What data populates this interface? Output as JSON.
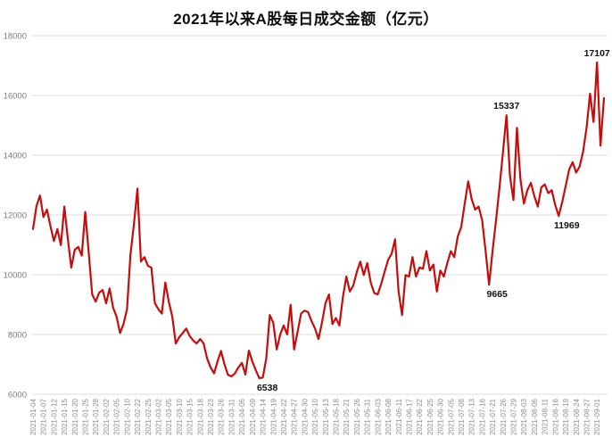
{
  "page": {
    "background": "#ffffff"
  },
  "chart_data": {
    "type": "line",
    "title": "2021年以来A股每日成交金额（亿元）",
    "unit": "亿元",
    "legend": "none",
    "grid": "horizontal",
    "line_color": "#c40d0d",
    "grid_color": "#dcdcdc",
    "ylim": [
      6000,
      18000
    ],
    "yticks": [
      6000,
      8000,
      10000,
      12000,
      14000,
      16000,
      18000
    ],
    "x_tick_interval": 3,
    "x": [
      "2021-01-04",
      "2021-01-05",
      "2021-01-06",
      "2021-01-07",
      "2021-01-08",
      "2021-01-11",
      "2021-01-12",
      "2021-01-13",
      "2021-01-14",
      "2021-01-15",
      "2021-01-18",
      "2021-01-19",
      "2021-01-20",
      "2021-01-21",
      "2021-01-22",
      "2021-01-25",
      "2021-01-26",
      "2021-01-27",
      "2021-01-28",
      "2021-01-29",
      "2021-02-01",
      "2021-02-02",
      "2021-02-03",
      "2021-02-04",
      "2021-02-05",
      "2021-02-08",
      "2021-02-09",
      "2021-02-10",
      "2021-02-18",
      "2021-02-19",
      "2021-02-22",
      "2021-02-23",
      "2021-02-24",
      "2021-02-25",
      "2021-02-26",
      "2021-03-01",
      "2021-03-02",
      "2021-03-03",
      "2021-03-04",
      "2021-03-05",
      "2021-03-08",
      "2021-03-09",
      "2021-03-10",
      "2021-03-11",
      "2021-03-12",
      "2021-03-15",
      "2021-03-16",
      "2021-03-17",
      "2021-03-18",
      "2021-03-19",
      "2021-03-22",
      "2021-03-23",
      "2021-03-24",
      "2021-03-25",
      "2021-03-26",
      "2021-03-29",
      "2021-03-30",
      "2021-03-31",
      "2021-04-01",
      "2021-04-02",
      "2021-04-06",
      "2021-04-07",
      "2021-04-08",
      "2021-04-09",
      "2021-04-12",
      "2021-04-13",
      "2021-04-14",
      "2021-04-15",
      "2021-04-16",
      "2021-04-19",
      "2021-04-20",
      "2021-04-21",
      "2021-04-22",
      "2021-04-23",
      "2021-04-26",
      "2021-04-27",
      "2021-04-28",
      "2021-04-29",
      "2021-04-30",
      "2021-05-06",
      "2021-05-07",
      "2021-05-10",
      "2021-05-11",
      "2021-05-12",
      "2021-05-13",
      "2021-05-14",
      "2021-05-17",
      "2021-05-18",
      "2021-05-19",
      "2021-05-20",
      "2021-05-21",
      "2021-05-24",
      "2021-05-25",
      "2021-05-26",
      "2021-05-27",
      "2021-05-28",
      "2021-05-31",
      "2021-06-01",
      "2021-06-02",
      "2021-06-03",
      "2021-06-04",
      "2021-06-07",
      "2021-06-08",
      "2021-06-09",
      "2021-06-10",
      "2021-06-11",
      "2021-06-15",
      "2021-06-16",
      "2021-06-17",
      "2021-06-18",
      "2021-06-21",
      "2021-06-22",
      "2021-06-23",
      "2021-06-24",
      "2021-06-25",
      "2021-06-28",
      "2021-06-29",
      "2021-06-30",
      "2021-07-01",
      "2021-07-02",
      "2021-07-05",
      "2021-07-06",
      "2021-07-07",
      "2021-07-08",
      "2021-07-09",
      "2021-07-12",
      "2021-07-13",
      "2021-07-14",
      "2021-07-15",
      "2021-07-16",
      "2021-07-19",
      "2021-07-20",
      "2021-07-21",
      "2021-07-22",
      "2021-07-23",
      "2021-07-26",
      "2021-07-27",
      "2021-07-28",
      "2021-07-29",
      "2021-07-30",
      "2021-08-02",
      "2021-08-03",
      "2021-08-04",
      "2021-08-05",
      "2021-08-06",
      "2021-08-09",
      "2021-08-10",
      "2021-08-11",
      "2021-08-12",
      "2021-08-13",
      "2021-08-16",
      "2021-08-17",
      "2021-08-18",
      "2021-08-19",
      "2021-08-20",
      "2021-08-23",
      "2021-08-24",
      "2021-08-25",
      "2021-08-26",
      "2021-08-27",
      "2021-08-30",
      "2021-08-31",
      "2021-09-01",
      "2021-09-02",
      "2021-09-03"
    ],
    "values": [
      11530,
      12300,
      12650,
      11930,
      12180,
      11630,
      11130,
      11530,
      10990,
      12280,
      11200,
      10240,
      10840,
      10930,
      10640,
      12100,
      10740,
      9340,
      9100,
      9400,
      9490,
      9045,
      9540,
      8900,
      8600,
      8050,
      8350,
      8850,
      10690,
      11700,
      12880,
      10440,
      10590,
      10300,
      10240,
      9045,
      8850,
      8700,
      9740,
      9100,
      8600,
      7700,
      7910,
      8050,
      8200,
      7950,
      7800,
      7700,
      7850,
      7700,
      7200,
      6900,
      6700,
      7100,
      7450,
      7000,
      6650,
      6600,
      6700,
      6900,
      7050,
      6660,
      7460,
      7100,
      6800,
      6538,
      6560,
      7200,
      8650,
      8400,
      7500,
      8000,
      8300,
      8000,
      8995,
      7500,
      8100,
      8700,
      8800,
      8750,
      8450,
      8200,
      7850,
      8400,
      9045,
      9340,
      8350,
      8550,
      8300,
      9240,
      9940,
      9440,
      9640,
      10090,
      10440,
      9990,
      10390,
      9740,
      9390,
      9340,
      9690,
      10100,
      10500,
      10700,
      11185,
      9440,
      8650,
      9990,
      9940,
      10590,
      9940,
      10240,
      10200,
      10790,
      10140,
      10340,
      9440,
      10140,
      9940,
      10390,
      10790,
      10590,
      11280,
      11600,
      12380,
      13125,
      12530,
      12180,
      12280,
      11830,
      10790,
      9665,
      10790,
      11830,
      12930,
      14120,
      15337,
      13300,
      12500,
      14916,
      13200,
      12380,
      12830,
      13075,
      12630,
      12280,
      12925,
      13025,
      12730,
      12830,
      12330,
      11969,
      12430,
      12975,
      13520,
      13770,
      13420,
      13620,
      14120,
      14916,
      16060,
      15114,
      17107,
      14319,
      15910
    ],
    "annotations": [
      {
        "x": "2021-04-13",
        "label": "6538",
        "placement": "below"
      },
      {
        "x": "2021-07-20",
        "label": "9665",
        "placement": "below"
      },
      {
        "x": "2021-07-27",
        "label": "15337",
        "placement": "above"
      },
      {
        "x": "2021-08-17",
        "label": "11969",
        "placement": "below"
      },
      {
        "x": "2021-09-01",
        "label": "17107",
        "placement": "above"
      }
    ]
  }
}
